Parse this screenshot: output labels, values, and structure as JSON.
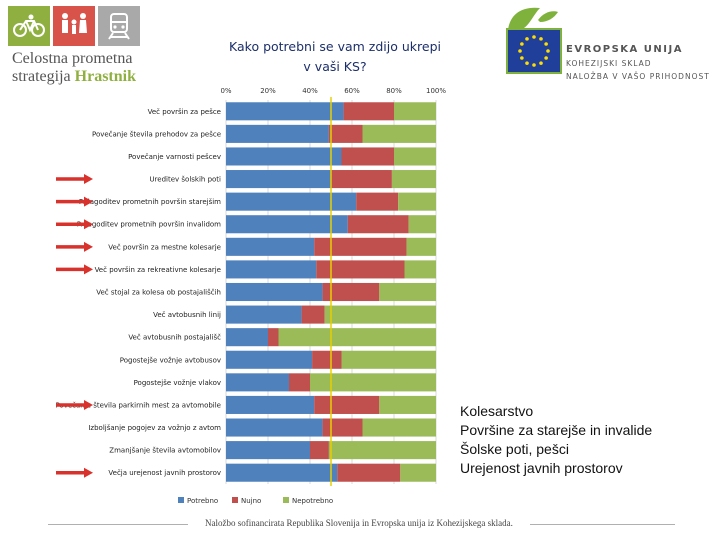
{
  "header": {
    "title_line1": "Kako potrebni se vam zdijo ukrepi",
    "title_line2": "v vaši KS?",
    "brand_line1": "Celostna prometna",
    "brand_line2_a": "strategija",
    "brand_line2_b": "Hrastnik",
    "eu_line1": "EVROPSKA UNIJA",
    "eu_line2": "KOHEZIJSKI SKLAD",
    "eu_line3": "NALOŽBA V VAŠO PRIHODNOST"
  },
  "colors": {
    "potrebno": "#4f81bd",
    "nujno": "#c0504d",
    "nepotrebno": "#9bbb59",
    "arrow": "#d9312b",
    "brand_green": "#8fb040"
  },
  "icons": [
    "bicycle-icon",
    "family-icon",
    "train-icon"
  ],
  "notes": [
    "Kolesarstvo",
    "Površine za starejše in invalide",
    "Šolske poti, pešci",
    "Urejenost javnih prostorov"
  ],
  "footer": {
    "text": "Naložbo sofinancirata Republika Slovenija in Evropska unija iz Kohezijskega sklada."
  },
  "chart_data": {
    "type": "bar",
    "orientation": "horizontal",
    "stacked": true,
    "percent_scale": true,
    "title": "Kako potrebni se vam zdijo ukrepi v vaši KS?",
    "xlim": [
      0,
      100
    ],
    "x_ticks": [
      "0%",
      "20%",
      "40%",
      "60%",
      "80%",
      "100%"
    ],
    "gridlines": true,
    "reference_line_at": 50,
    "categories": [
      "Več površin za pešce",
      "Povečanje števila prehodov za pešce",
      "Povečanje varnosti pešcev",
      "Ureditev šolskih poti",
      "Prilagoditev prometnih površin starejšim",
      "Prilagoditev prometnih površin invalidom",
      "Več površin za mestne kolesarje",
      "Več površin za rekreativne kolesarje",
      "Več stojal za kolesa ob postajališčih",
      "Več avtobusnih linij",
      "Več avtobusnih postajališč",
      "Pogostejše vožnje avtobusov",
      "Pogostejše vožnje vlakov",
      "Povečanje števila parkirnih mest za avtomobile",
      "Izboljšanje pogojev za vožnjo z avtom",
      "Zmanjšanje števila avtomobilov",
      "Večja urejenost javnih prostorov"
    ],
    "highlighted": [
      false,
      false,
      false,
      true,
      true,
      true,
      true,
      true,
      false,
      false,
      false,
      false,
      false,
      true,
      false,
      false,
      true
    ],
    "series": [
      {
        "name": "Potrebno",
        "values": [
          56,
          49,
          55,
          50,
          62,
          58,
          42,
          43,
          46,
          36,
          20,
          41,
          30,
          42,
          46,
          40,
          53
        ]
      },
      {
        "name": "Nujno",
        "values": [
          24,
          16,
          25,
          29,
          20,
          29,
          44,
          42,
          27,
          11,
          5,
          14,
          10,
          31,
          19,
          9,
          30
        ]
      },
      {
        "name": "Nepotrebno",
        "values": [
          20,
          35,
          20,
          21,
          18,
          13,
          14,
          15,
          27,
          53,
          75,
          45,
          60,
          27,
          35,
          51,
          17
        ]
      }
    ]
  }
}
